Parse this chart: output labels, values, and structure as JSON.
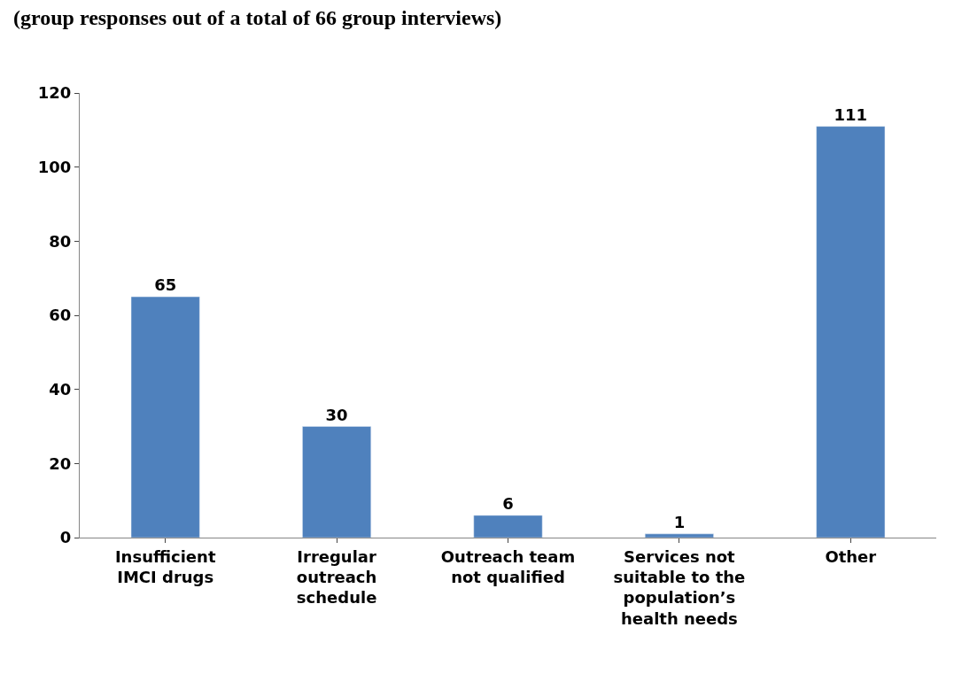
{
  "chart_data": {
    "type": "bar",
    "subtitle": "(group responses out of a total of 66 group interviews)",
    "categories": [
      "Insufficient IMCI drugs",
      "Irregular outreach schedule",
      "Outreach team not qualified",
      "Services not suitable to the population’s health needs",
      "Other"
    ],
    "values": [
      65,
      30,
      6,
      1,
      111
    ],
    "color": "#4f81bd",
    "ylim": [
      0,
      120
    ],
    "yticks": [
      0,
      20,
      40,
      60,
      80,
      100,
      120
    ],
    "data_labels": true,
    "legend": false
  }
}
